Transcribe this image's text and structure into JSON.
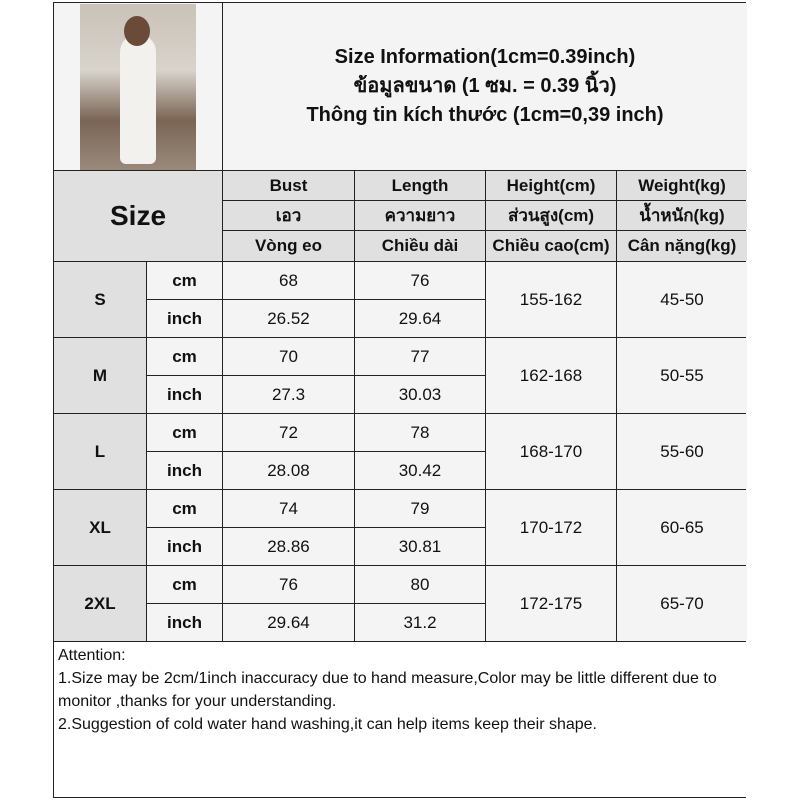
{
  "title_lines": [
    "Size Information(1cm=0.39inch)",
    "ข้อมูลขนาด (1 ซม. = 0.39 นิ้ว)",
    "Thông tin kích thước (1cm=0,39 inch)"
  ],
  "size_label": "Size",
  "headers": [
    [
      "Bust",
      "Length",
      "Height(cm)",
      "Weight(kg)"
    ],
    [
      "เอว",
      "ความยาว",
      "ส่วนสูง(cm)",
      "น้ำหนัก(kg)"
    ],
    [
      "Vòng eo",
      "Chiều dài",
      "Chiều cao(cm)",
      "Cân nặng(kg)"
    ]
  ],
  "unit_cm": "cm",
  "unit_inch": "inch",
  "rows": [
    {
      "size": "S",
      "bust_cm": "68",
      "length_cm": "76",
      "bust_in": "26.52",
      "length_in": "29.64",
      "height": "155-162",
      "weight": "45-50"
    },
    {
      "size": "M",
      "bust_cm": "70",
      "length_cm": "77",
      "bust_in": "27.3",
      "length_in": "30.03",
      "height": "162-168",
      "weight": "50-55"
    },
    {
      "size": "L",
      "bust_cm": "72",
      "length_cm": "78",
      "bust_in": "28.08",
      "length_in": "30.42",
      "height": "168-170",
      "weight": "55-60"
    },
    {
      "size": "XL",
      "bust_cm": "74",
      "length_cm": "79",
      "bust_in": "28.86",
      "length_in": "30.81",
      "height": "170-172",
      "weight": "60-65"
    },
    {
      "size": "2XL",
      "bust_cm": "76",
      "length_cm": "80",
      "bust_in": "29.64",
      "length_in": "31.2",
      "height": "172-175",
      "weight": "65-70"
    }
  ],
  "attention": [
    "Attention:",
    "1.Size may be 2cm/1inch inaccuracy due to hand measure,Color may be little different due to monitor ,thanks for your understanding.",
    "2.Suggestion of cold water hand washing,it can help items keep their shape."
  ]
}
